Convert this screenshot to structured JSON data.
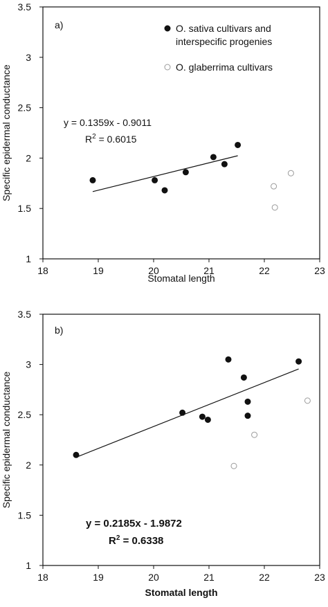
{
  "chart_data": [
    {
      "type": "scatter",
      "panel_label": "a)",
      "xlabel": "Stomatal length",
      "ylabel": "Specific epidermal conductance",
      "xlim": [
        18,
        23
      ],
      "ylim": [
        1,
        3.5
      ],
      "xticks": [
        "18",
        "19",
        "20",
        "21",
        "22",
        "23"
      ],
      "yticks": [
        "1",
        "1.5",
        "2",
        "2.5",
        "3",
        "3.5"
      ],
      "grid": false,
      "legend_position": "top-right",
      "series": [
        {
          "name": "O. sativa cultivars and interspecific progenies",
          "marker": "filled-circle",
          "points": [
            [
              18.9,
              1.78
            ],
            [
              20.02,
              1.78
            ],
            [
              20.2,
              1.68
            ],
            [
              20.58,
              1.86
            ],
            [
              21.08,
              2.01
            ],
            [
              21.28,
              1.94
            ],
            [
              21.52,
              2.13
            ]
          ]
        },
        {
          "name": "O. glaberrima cultivars",
          "marker": "open-circle",
          "points": [
            [
              22.17,
              1.72
            ],
            [
              22.19,
              1.51
            ],
            [
              22.48,
              1.85
            ]
          ]
        }
      ],
      "trendline": {
        "x_range": [
          18.9,
          21.52
        ],
        "slope": 0.1359,
        "intercept": -0.9011
      },
      "annotations": {
        "equation": "y = 0.1359x - 0.9011",
        "r2_prefix": "R",
        "r2_sup": "2",
        "r2_value": " = 0.6015"
      }
    },
    {
      "type": "scatter",
      "panel_label": "b)",
      "xlabel": "Stomatal length",
      "ylabel": "Specific epidermal conductance",
      "xlim": [
        18,
        23
      ],
      "ylim": [
        1,
        3.5
      ],
      "xticks": [
        "18",
        "19",
        "20",
        "21",
        "22",
        "23"
      ],
      "yticks": [
        "1",
        "1.5",
        "2",
        "2.5",
        "3",
        "3.5"
      ],
      "grid": false,
      "legend_position": "none",
      "series": [
        {
          "marker": "filled-circle",
          "points": [
            [
              18.6,
              2.1
            ],
            [
              20.52,
              2.52
            ],
            [
              20.88,
              2.48
            ],
            [
              20.98,
              2.45
            ],
            [
              21.35,
              3.05
            ],
            [
              21.63,
              2.87
            ],
            [
              21.7,
              2.49
            ],
            [
              21.7,
              2.63
            ],
            [
              22.62,
              3.03
            ]
          ]
        },
        {
          "marker": "open-circle",
          "points": [
            [
              21.45,
              1.99
            ],
            [
              21.82,
              2.3
            ],
            [
              22.78,
              2.64
            ]
          ]
        }
      ],
      "trendline": {
        "x_range": [
          18.6,
          22.62
        ],
        "slope": 0.2185,
        "intercept": -1.9872
      },
      "annotations": {
        "equation": "y = 0.2185x - 1.9872",
        "r2_prefix": "R",
        "r2_sup": "2",
        "r2_value": " = 0.6338"
      }
    }
  ]
}
